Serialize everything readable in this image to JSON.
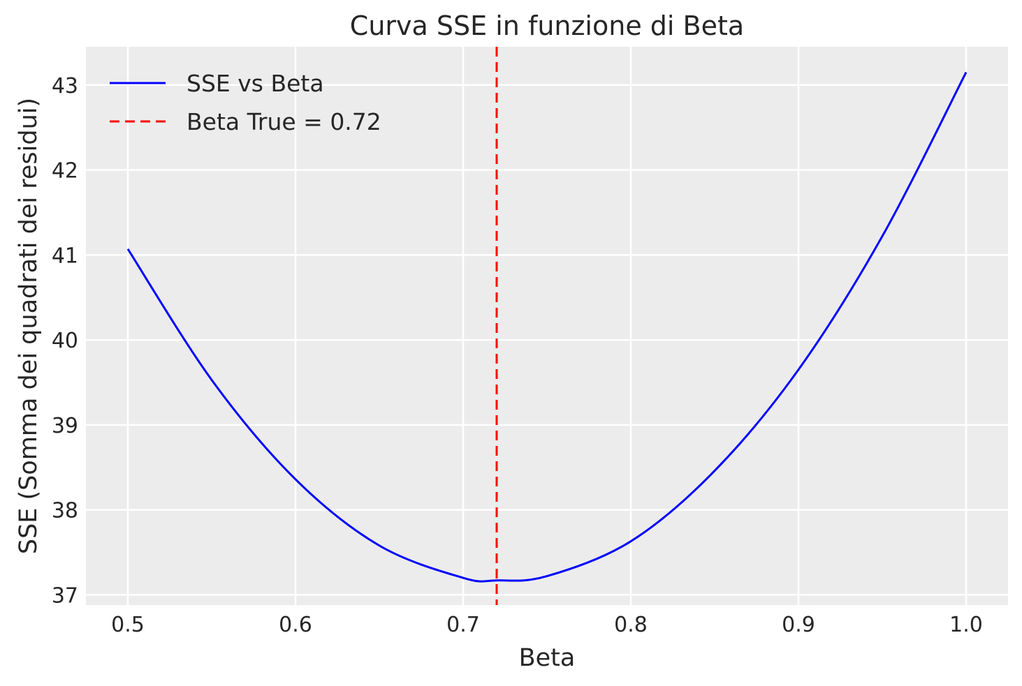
{
  "chart_data": {
    "type": "line",
    "title": "Curva SSE in funzione di Beta",
    "xlabel": "Beta",
    "ylabel": "SSE (Somma dei quadrati dei residui)",
    "xlim": [
      0.475,
      1.025
    ],
    "ylim": [
      36.88,
      43.45
    ],
    "xticks": [
      0.5,
      0.6,
      0.7,
      0.8,
      0.9,
      1.0
    ],
    "xtick_labels": [
      "0.5",
      "0.6",
      "0.7",
      "0.8",
      "0.9",
      "1.0"
    ],
    "yticks": [
      37,
      38,
      39,
      40,
      41,
      42,
      43
    ],
    "ytick_labels": [
      "37",
      "38",
      "39",
      "40",
      "41",
      "42",
      "43"
    ],
    "grid": true,
    "legend_position": "top-left",
    "series": [
      {
        "name": "SSE vs Beta",
        "style": "solid",
        "color": "#0000ff",
        "x": [
          0.5,
          0.55,
          0.6,
          0.65,
          0.7,
          0.72,
          0.75,
          0.8,
          0.85,
          0.9,
          0.95,
          1.0
        ],
        "y": [
          41.07,
          39.53,
          38.36,
          37.58,
          37.2,
          37.17,
          37.22,
          37.63,
          38.46,
          39.65,
          41.22,
          43.15
        ]
      }
    ],
    "vlines": [
      {
        "name": "Beta True = 0.72",
        "x": 0.72,
        "style": "dashed",
        "color": "#ff0000"
      }
    ]
  }
}
